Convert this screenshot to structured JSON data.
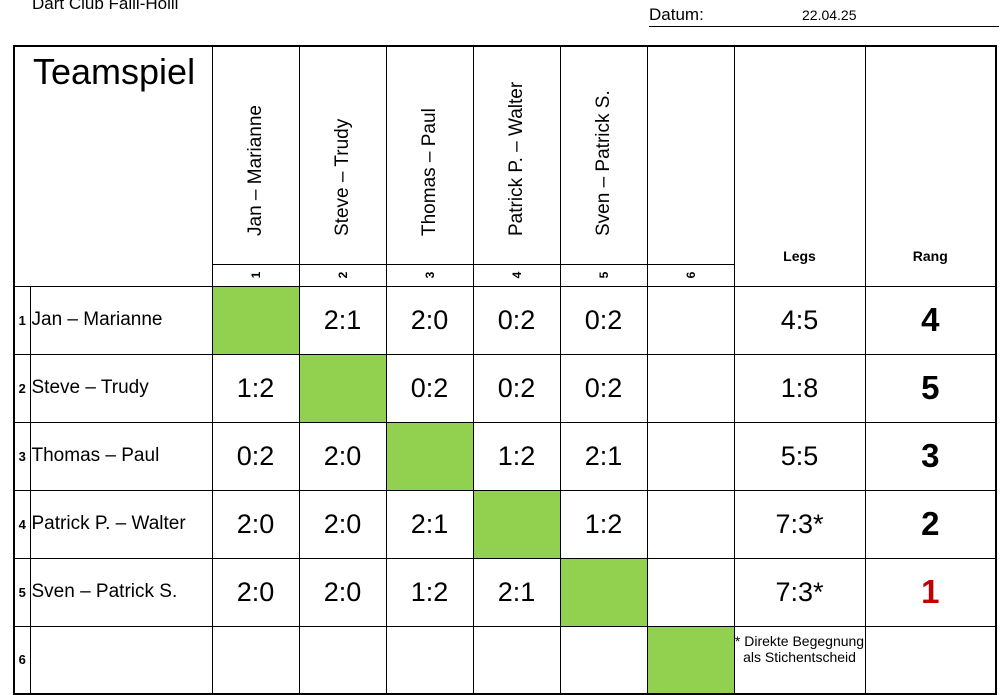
{
  "header": {
    "club": "Dart Club Falli-Hölli",
    "datum_label": "Datum:",
    "datum_value": "22.04.25"
  },
  "title": "Teamspiel",
  "columns": [
    {
      "num": "1",
      "name": "Jan – Marianne"
    },
    {
      "num": "2",
      "name": "Steve – Trudy"
    },
    {
      "num": "3",
      "name": "Thomas – Paul"
    },
    {
      "num": "4",
      "name": "Patrick P. – Walter"
    },
    {
      "num": "5",
      "name": "Sven – Patrick S."
    },
    {
      "num": "6",
      "name": ""
    }
  ],
  "legs_header": "Legs",
  "rang_header": "Rang",
  "rows": [
    {
      "num": "1",
      "name": "Jan – Marianne",
      "scores": [
        "",
        "2:1",
        "2:0",
        "0:2",
        "0:2",
        ""
      ],
      "legs": "4:5",
      "rang": "4"
    },
    {
      "num": "2",
      "name": "Steve – Trudy",
      "scores": [
        "1:2",
        "",
        "0:2",
        "0:2",
        "0:2",
        ""
      ],
      "legs": "1:8",
      "rang": "5"
    },
    {
      "num": "3",
      "name": "Thomas – Paul",
      "scores": [
        "0:2",
        "2:0",
        "",
        "1:2",
        "2:1",
        ""
      ],
      "legs": "5:5",
      "rang": "3"
    },
    {
      "num": "4",
      "name": "Patrick P. – Walter",
      "scores": [
        "2:0",
        "2:0",
        "2:1",
        "",
        "1:2",
        ""
      ],
      "legs": "7:3*",
      "rang": "2"
    },
    {
      "num": "5",
      "name": "Sven – Patrick S.",
      "scores": [
        "2:0",
        "2:0",
        "1:2",
        "2:1",
        "",
        ""
      ],
      "legs": "7:3*",
      "rang": "1"
    },
    {
      "num": "6",
      "name": "",
      "scores": [
        "",
        "",
        "",
        "",
        "",
        ""
      ],
      "legs": "* Direkte Begegnung als Stichentscheid",
      "rang": ""
    }
  ],
  "colors": {
    "diagonal": "#92d050",
    "winner": "#c00000"
  }
}
